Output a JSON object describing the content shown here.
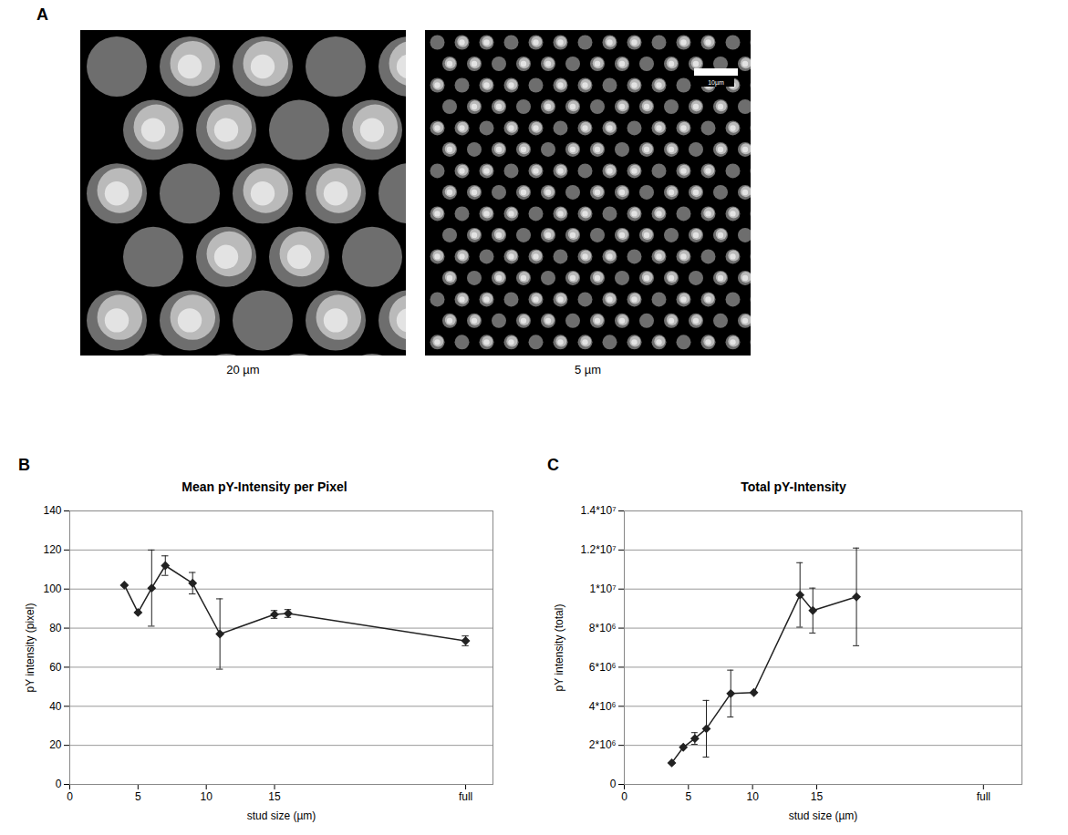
{
  "panel_a": {
    "letter": "A",
    "images": [
      {
        "caption": "20 µm"
      },
      {
        "caption": "5 µm",
        "scale_bar_label": "10µm"
      }
    ]
  },
  "chart_data": [
    {
      "panel": "B",
      "type": "line",
      "title": "Mean pY-Intensity per Pixel",
      "x_label": "stud size (µm)",
      "y_label": "pY intensity (pixel)",
      "x": [
        4,
        5,
        6,
        7,
        9,
        11,
        15,
        16,
        29
      ],
      "values": [
        102,
        88,
        100.5,
        112,
        103,
        77,
        87,
        87.5,
        73.5
      ],
      "errors": [
        null,
        null,
        19.5,
        5,
        5.5,
        18,
        2,
        2,
        2.5
      ],
      "xlim": [
        0,
        31
      ],
      "xticks": [
        0,
        5,
        10,
        15,
        {
          "value": 29,
          "label": "full"
        }
      ],
      "ylim": [
        0,
        140
      ],
      "yticks": [
        0,
        20,
        40,
        60,
        80,
        100,
        120,
        140
      ],
      "grid": true,
      "marker": "diamond",
      "color": "#222222"
    },
    {
      "panel": "C",
      "type": "line",
      "title": "Total pY-Intensity",
      "x_label": "stud size (µm)",
      "y_label": "pY intensity (total)",
      "x": [
        3.7,
        4.6,
        5.5,
        6.4,
        8.3,
        10.1,
        13.7,
        14.7,
        18.1
      ],
      "values": [
        1100000,
        1900000,
        2350000,
        2850000,
        4650000,
        4700000,
        9700000,
        8900000,
        9600000
      ],
      "errors": [
        null,
        null,
        300000,
        1450000,
        1200000,
        null,
        1650000,
        1150000,
        2500000
      ],
      "xlim": [
        0,
        31
      ],
      "xticks": [
        0,
        5,
        10,
        15,
        {
          "value": 28,
          "label": "full"
        }
      ],
      "ylim": [
        0,
        14000000
      ],
      "yticks": [
        0,
        {
          "value": 2000000,
          "label": "2*10⁶"
        },
        {
          "value": 4000000,
          "label": "4*10⁶"
        },
        {
          "value": 6000000,
          "label": "6*10⁶"
        },
        {
          "value": 8000000,
          "label": "8*10⁶"
        },
        {
          "value": 10000000,
          "label": "1*10⁷"
        },
        {
          "value": 12000000,
          "label": "1.2*10⁷"
        },
        {
          "value": 14000000,
          "label": "1.4*10⁷"
        }
      ],
      "grid": true,
      "marker": "diamond",
      "color": "#222222"
    }
  ]
}
